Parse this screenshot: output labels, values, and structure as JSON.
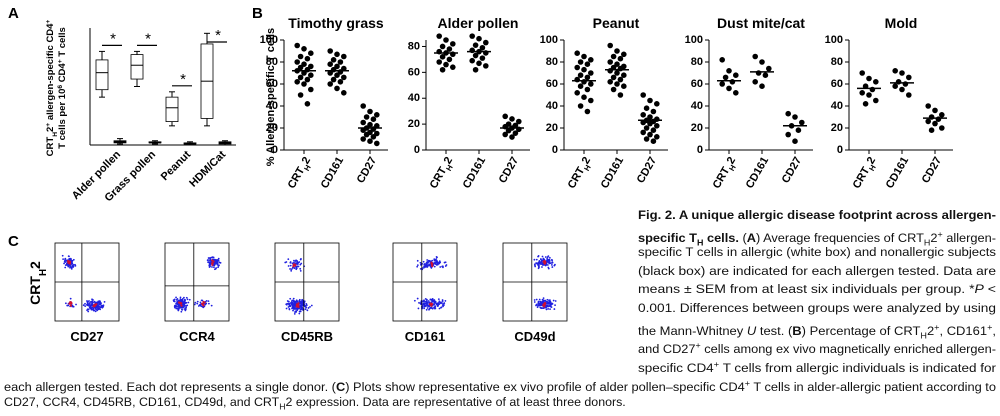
{
  "panel_labels": [
    "A",
    "B",
    "C"
  ],
  "b_ylabel": "% Allergen-specific T cells",
  "chart_data": [
    {
      "type": "box",
      "ylabel_lines": [
        [
          {
            "t": "CRT"
          },
          {
            "t": "H",
            "s": "sub"
          },
          {
            "t": "2"
          },
          {
            "t": "+",
            "s": "sup"
          },
          {
            "t": " allergen-specific CD4"
          },
          {
            "t": "+",
            "s": "sup"
          }
        ],
        [
          {
            "t": "T cells per 10"
          },
          {
            "t": "6",
            "s": "sup"
          },
          {
            "t": " CD4"
          },
          {
            "t": "+",
            "s": "sup"
          },
          {
            "t": " T cells"
          }
        ]
      ],
      "categories": [
        "Alder pollen",
        "Grass pollen",
        "Peanut",
        "HDM/Cat"
      ],
      "ylim": [
        0,
        110
      ],
      "series": [
        {
          "color": "#ffffff",
          "values": [
            [
              45,
              52,
              68,
              80,
              88
            ],
            [
              55,
              62,
              75,
              85,
              88
            ],
            [
              18,
              22,
              35,
              45,
              50
            ],
            [
              18,
              25,
              60,
              95,
              105
            ]
          ]
        },
        {
          "color": "#000000",
          "values": [
            [
              1,
              2,
              3,
              4,
              6
            ],
            [
              1,
              2,
              2,
              3,
              4
            ],
            [
              0,
              1,
              1,
              2,
              3
            ],
            [
              0,
              1,
              2,
              3,
              4
            ]
          ]
        }
      ],
      "significance": [
        "*",
        "*",
        "*",
        "*"
      ]
    },
    {
      "type": "dot",
      "title": "Timothy grass",
      "categories": [
        [
          {
            "t": "CRT"
          },
          {
            "t": "H",
            "s": "sub"
          },
          {
            "t": "2"
          }
        ],
        [
          {
            "t": "CD161"
          }
        ],
        [
          {
            "t": "CD27"
          }
        ]
      ],
      "ylim": [
        0,
        100
      ],
      "yticks": [
        0,
        20,
        40,
        60,
        80,
        100
      ],
      "values": [
        [
          95,
          92,
          88,
          85,
          83,
          80,
          78,
          76,
          75,
          73,
          72,
          70,
          68,
          66,
          64,
          62,
          60,
          55,
          50,
          42
        ],
        [
          90,
          87,
          85,
          82,
          80,
          78,
          76,
          74,
          73,
          71,
          70,
          68,
          66,
          64,
          62,
          60,
          56,
          52
        ],
        [
          40,
          35,
          32,
          30,
          28,
          25,
          23,
          22,
          20,
          19,
          18,
          16,
          15,
          14,
          12,
          10,
          8,
          6
        ]
      ],
      "means": [
        72,
        72,
        20
      ]
    },
    {
      "type": "dot",
      "title": "Alder pollen",
      "categories": [
        [
          {
            "t": "CRT"
          },
          {
            "t": "H",
            "s": "sub"
          },
          {
            "t": "2"
          }
        ],
        [
          {
            "t": "CD161"
          }
        ],
        [
          {
            "t": "CD27"
          }
        ]
      ],
      "ylim": [
        0,
        85
      ],
      "yticks": [
        0,
        20,
        40,
        60,
        80
      ],
      "values": [
        [
          88,
          85,
          82,
          80,
          78,
          76,
          75,
          74,
          72,
          70,
          68,
          66,
          64,
          62
        ],
        [
          88,
          86,
          83,
          81,
          79,
          77,
          76,
          75,
          73,
          71,
          69,
          67,
          65,
          62
        ],
        [
          26,
          24,
          22,
          20,
          19,
          18,
          17,
          16,
          15,
          13,
          12,
          10
        ]
      ],
      "means": [
        75,
        76,
        17
      ]
    },
    {
      "type": "dot",
      "title": "Peanut",
      "categories": [
        [
          {
            "t": "CRT"
          },
          {
            "t": "H",
            "s": "sub"
          },
          {
            "t": "2"
          }
        ],
        [
          {
            "t": "CD161"
          }
        ],
        [
          {
            "t": "CD27"
          }
        ]
      ],
      "ylim": [
        0,
        100
      ],
      "yticks": [
        0,
        20,
        40,
        60,
        80,
        100
      ],
      "values": [
        [
          88,
          85,
          82,
          80,
          78,
          75,
          73,
          70,
          68,
          66,
          64,
          62,
          60,
          58,
          55,
          52,
          48,
          45,
          40,
          35
        ],
        [
          95,
          90,
          87,
          85,
          83,
          80,
          78,
          76,
          75,
          74,
          72,
          70,
          68,
          66,
          64,
          62,
          60,
          58,
          55,
          50
        ],
        [
          50,
          45,
          42,
          38,
          35,
          32,
          30,
          28,
          27,
          26,
          25,
          24,
          22,
          20,
          18,
          16,
          14,
          12,
          10,
          8
        ]
      ],
      "means": [
        63,
        73,
        27
      ]
    },
    {
      "type": "dot",
      "title": "Dust mite/cat",
      "categories": [
        [
          {
            "t": "CRT"
          },
          {
            "t": "H",
            "s": "sub"
          },
          {
            "t": "2"
          }
        ],
        [
          {
            "t": "CD161"
          }
        ],
        [
          {
            "t": "CD27"
          }
        ]
      ],
      "ylim": [
        0,
        100
      ],
      "yticks": [
        0,
        20,
        40,
        60,
        80,
        100
      ],
      "values": [
        [
          82,
          72,
          68,
          66,
          62,
          60,
          56,
          52
        ],
        [
          85,
          80,
          74,
          70,
          68,
          62,
          58
        ],
        [
          33,
          30,
          25,
          22,
          18,
          14,
          8
        ]
      ],
      "means": [
        63,
        71,
        22
      ]
    },
    {
      "type": "dot",
      "title": "Mold",
      "categories": [
        [
          {
            "t": "CRT"
          },
          {
            "t": "H",
            "s": "sub"
          },
          {
            "t": "2"
          }
        ],
        [
          {
            "t": "CD161"
          }
        ],
        [
          {
            "t": "CD27"
          }
        ]
      ],
      "ylim": [
        0,
        100
      ],
      "yticks": [
        0,
        20,
        40,
        60,
        80,
        100
      ],
      "values": [
        [
          70,
          65,
          62,
          58,
          55,
          52,
          50,
          45,
          42
        ],
        [
          72,
          70,
          66,
          62,
          60,
          58,
          55,
          50
        ],
        [
          40,
          36,
          32,
          30,
          28,
          26,
          24,
          20,
          18
        ]
      ],
      "means": [
        56,
        61,
        29
      ]
    },
    {
      "type": "flow",
      "ylabel": [
        {
          "t": "CRT"
        },
        {
          "t": "H",
          "s": "sub"
        },
        {
          "t": "2"
        }
      ],
      "xlabels": [
        "CD27",
        "CCR4",
        "CD45RB",
        "CD161",
        "CD49d"
      ]
    }
  ],
  "caption": {
    "lines": [
      [
        {
          "t": "Fig. 2.  A unique allergic disease footprint across allergen-",
          "s": "b"
        }
      ],
      [
        {
          "t": "specific T",
          "s": "b"
        },
        {
          "t": "H",
          "s": "bsub"
        },
        {
          "t": " cells.",
          "s": "b"
        },
        {
          "t": " ("
        },
        {
          "t": "A",
          "s": "b"
        },
        {
          "t": ") Average frequencies of CRT"
        },
        {
          "t": "H",
          "s": "sub"
        },
        {
          "t": "2"
        },
        {
          "t": "+",
          "s": "sup"
        },
        {
          "t": " allergen-"
        }
      ],
      [
        {
          "t": "specific T cells in allergic (white box) and nonallergic subjects"
        }
      ],
      [
        {
          "t": "(black box) are indicated for each allergen tested. Data are"
        }
      ],
      [
        {
          "t": "means ± SEM from at least six individuals per group. *"
        },
        {
          "t": "P",
          "s": "i"
        },
        {
          "t": " <"
        }
      ],
      [
        {
          "t": "0.001. Differences between groups were analyzed by using"
        }
      ],
      [
        {
          "t": "the Mann-Whitney "
        },
        {
          "t": "U",
          "s": "i"
        },
        {
          "t": " test. ("
        },
        {
          "t": "B",
          "s": "b"
        },
        {
          "t": ") Percentage of CRT"
        },
        {
          "t": "H",
          "s": "sub"
        },
        {
          "t": "2"
        },
        {
          "t": "+",
          "s": "sup"
        },
        {
          "t": ", CD161"
        },
        {
          "t": "+",
          "s": "sup"
        },
        {
          "t": ","
        }
      ],
      [
        {
          "t": "and CD27"
        },
        {
          "t": "+",
          "s": "sup"
        },
        {
          "t": " cells among ex vivo magnetically enriched allergen-"
        }
      ],
      [
        {
          "t": "specific CD4"
        },
        {
          "t": "+",
          "s": "sup"
        },
        {
          "t": " T cells from allergic individuals is indicated for"
        }
      ],
      [
        {
          "t": "each allergen tested. Each dot represents a single donor. ("
        },
        {
          "t": "C",
          "s": "b"
        },
        {
          "t": ") Plots show representative ex vivo profile of alder pollen–specific CD4"
        },
        {
          "t": "+",
          "s": "sup"
        },
        {
          "t": " T cells in alder-allergic patient according to"
        }
      ],
      [
        {
          "t": "CD27, CCR4, CD45RB, CD161, CD49d, and CRT"
        },
        {
          "t": "H",
          "s": "sub"
        },
        {
          "t": "2 expression. Data are representative of at least three donors."
        }
      ]
    ]
  }
}
